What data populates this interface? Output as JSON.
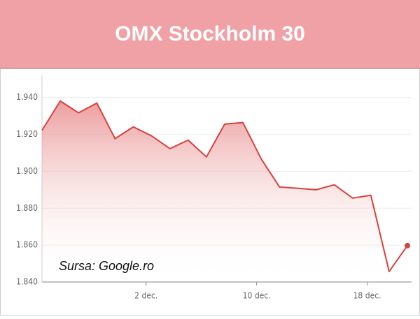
{
  "chart_data": {
    "type": "line",
    "title": "OMX Stockholm 30",
    "annotation": "Sursa: Google.ro",
    "color": "#d9413c",
    "grid": true,
    "area": true,
    "x": [
      0,
      1,
      2,
      3,
      4,
      5,
      6,
      7,
      8,
      9,
      10,
      11,
      12,
      13,
      14,
      15,
      16,
      17,
      18,
      19,
      20
    ],
    "values": [
      1922.2,
      1938.1,
      1931.7,
      1937.0,
      1917.7,
      1924.1,
      1919.2,
      1912.3,
      1916.9,
      1907.8,
      1925.6,
      1926.4,
      1906.7,
      1891.5,
      1890.8,
      1890.0,
      1892.7,
      1885.5,
      1887.0,
      1845.7,
      1859.7
    ],
    "xlim": [
      0,
      20
    ],
    "xticks": [
      {
        "value": 5.7,
        "label": "2 dec."
      },
      {
        "value": 11.75,
        "label": "10 dec."
      },
      {
        "value": 17.8,
        "label": "18 dec."
      }
    ],
    "ylim": [
      1840,
      1952
    ],
    "yticks": [
      {
        "value": 1840,
        "label": "1.840"
      },
      {
        "value": 1860,
        "label": "1.860"
      },
      {
        "value": 1880,
        "label": "1.880"
      },
      {
        "value": 1900,
        "label": "1.900"
      },
      {
        "value": 1920,
        "label": "1.920"
      },
      {
        "value": 1940,
        "label": "1.940"
      }
    ]
  }
}
